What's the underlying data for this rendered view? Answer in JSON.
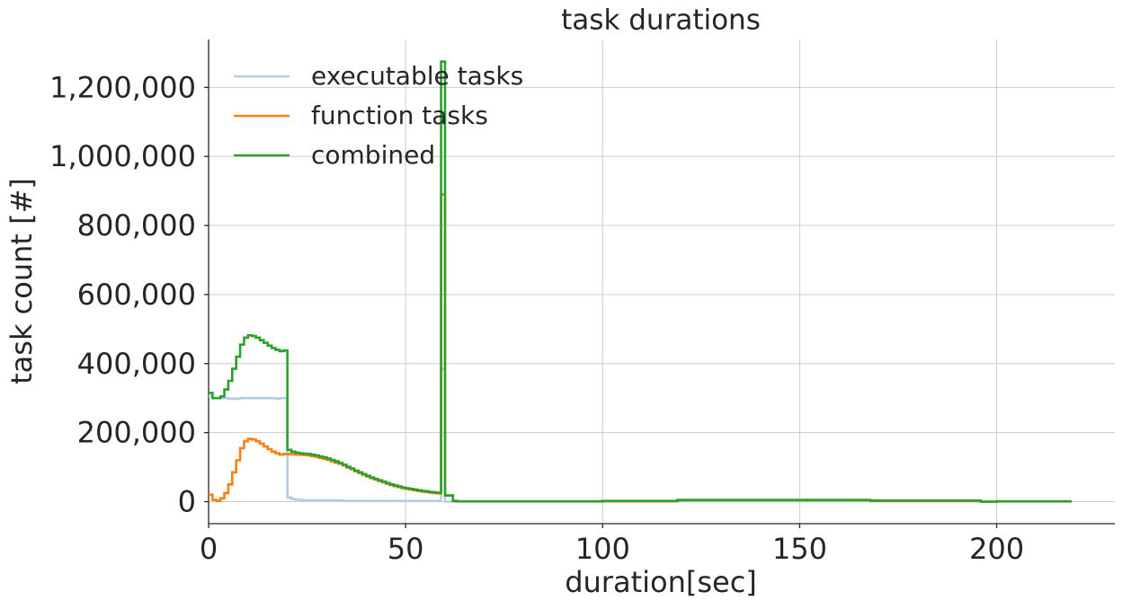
{
  "chart_data": {
    "type": "line",
    "step": "post",
    "title": "task durations",
    "x_label": "duration[sec]",
    "y_label": "task count [#]",
    "x": [
      0,
      1,
      2,
      3,
      4,
      5,
      6,
      7,
      8,
      9,
      10,
      11,
      12,
      13,
      14,
      15,
      16,
      17,
      18,
      19,
      20,
      21,
      22,
      23,
      24,
      25,
      26,
      27,
      28,
      29,
      30,
      31,
      32,
      33,
      34,
      35,
      36,
      37,
      38,
      39,
      40,
      41,
      42,
      43,
      44,
      45,
      46,
      47,
      48,
      49,
      50,
      51,
      52,
      53,
      54,
      55,
      56,
      57,
      58,
      59,
      60,
      61,
      62,
      63,
      70,
      100,
      119,
      168,
      196,
      200,
      219
    ],
    "series": [
      {
        "name": "executable tasks",
        "color": "#b3cde3",
        "values": [
          305000,
          300000,
          300000,
          300000,
          300000,
          298000,
          298000,
          298000,
          300000,
          300000,
          300000,
          300000,
          300000,
          300000,
          300000,
          300000,
          300000,
          298000,
          300000,
          300000,
          12000,
          8000,
          6000,
          5000,
          4000,
          4000,
          4000,
          4000,
          4000,
          4000,
          4000,
          4000,
          4000,
          4000,
          2000,
          2000,
          2000,
          2000,
          2000,
          2000,
          2000,
          2000,
          2000,
          2000,
          2000,
          2000,
          2000,
          2000,
          2000,
          2000,
          2000,
          2000,
          2000,
          2000,
          2000,
          2000,
          2000,
          2000,
          2000,
          385000,
          0,
          0,
          0,
          0,
          0,
          1000,
          1000,
          1000,
          0,
          0,
          0
        ]
      },
      {
        "name": "function tasks",
        "color": "#ff7f0e",
        "values": [
          20000,
          5000,
          2000,
          10000,
          25000,
          50000,
          85000,
          120000,
          155000,
          175000,
          182000,
          180000,
          175000,
          168000,
          160000,
          152000,
          145000,
          140000,
          136000,
          138000,
          138000,
          137000,
          136000,
          136000,
          135000,
          134000,
          132000,
          130000,
          127000,
          124000,
          121000,
          117000,
          113000,
          110000,
          105000,
          99000,
          94000,
          88000,
          83000,
          78000,
          73000,
          68000,
          64000,
          60000,
          56000,
          52000,
          48000,
          45000,
          42000,
          39000,
          37000,
          35000,
          33000,
          31000,
          29000,
          28000,
          26000,
          25000,
          24000,
          890000,
          18000,
          18000,
          2000,
          1000,
          1000,
          1000,
          4000,
          2000,
          0,
          1000,
          1000
        ]
      },
      {
        "name": "combined",
        "color": "#2ca02c",
        "values": [
          315000,
          300000,
          300000,
          305000,
          325000,
          350000,
          385000,
          420000,
          455000,
          475000,
          482000,
          480000,
          475000,
          468000,
          460000,
          452000,
          445000,
          440000,
          436000,
          438000,
          150000,
          145000,
          142000,
          140000,
          139000,
          138000,
          136000,
          134000,
          131000,
          128000,
          125000,
          121000,
          117000,
          112000,
          107000,
          101000,
          96000,
          90000,
          85000,
          80000,
          75000,
          70000,
          66000,
          62000,
          58000,
          54000,
          50000,
          47000,
          44000,
          41000,
          39000,
          37000,
          35000,
          33000,
          31000,
          30000,
          28000,
          27000,
          26000,
          1275000,
          18000,
          18000,
          2000,
          1000,
          1000,
          2000,
          5000,
          3000,
          0,
          1000,
          1000
        ]
      }
    ],
    "xlim": [
      0,
      230
    ],
    "xticks": [
      0,
      50,
      100,
      150,
      200
    ],
    "ylim": [
      -63750,
      1338750
    ],
    "yticks": [
      0,
      {
        "value": 200000,
        "label": "200,000"
      },
      {
        "value": 400000,
        "label": "400,000"
      },
      {
        "value": 600000,
        "label": "600,000"
      },
      {
        "value": 800000,
        "label": "800,000"
      },
      {
        "value": 1000000,
        "label": "1,000,000"
      },
      {
        "value": 1200000,
        "label": "1,200,000"
      }
    ],
    "grid": true,
    "legend": "upper left"
  }
}
